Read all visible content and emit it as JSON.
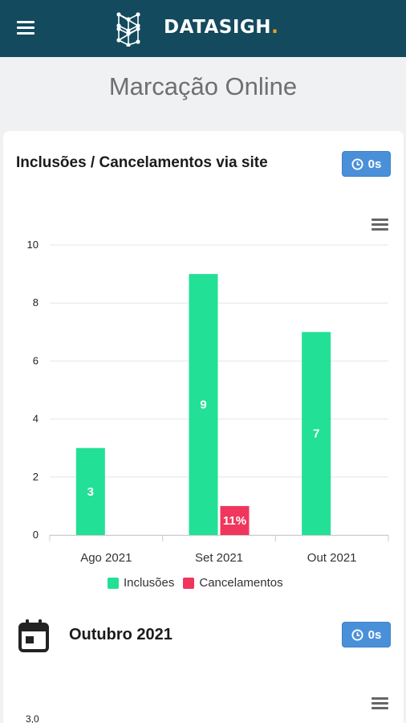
{
  "header": {
    "brand": "DATASIGH",
    "brand_suffix": ".",
    "menu_icon": "hamburger-icon",
    "logo_icon": "brain-network-icon",
    "bg_color": "#134a5e",
    "accent_color": "#f2a31a"
  },
  "page": {
    "title": "Marcação Online"
  },
  "card1": {
    "heading": "Inclusões / Cancelamentos via site",
    "timer_label": "0s",
    "timer_icon": "clock-icon",
    "menu_icon": "hamburger-icon"
  },
  "chart_data": {
    "type": "bar",
    "categories": [
      "Ago 2021",
      "Set 2021",
      "Out 2021"
    ],
    "yticks": [
      "0",
      "2",
      "4",
      "6",
      "8",
      "10"
    ],
    "ylim": [
      0,
      10
    ],
    "grid": true,
    "legend_position": "bottom",
    "series": [
      {
        "name": "Inclusões",
        "color": "#22e096",
        "values": [
          3,
          9,
          7
        ],
        "labels": [
          "3",
          "9",
          "7"
        ]
      },
      {
        "name": "Cancelamentos",
        "color": "#f0365c",
        "values": [
          0,
          1,
          0
        ],
        "labels": [
          "",
          "11%",
          ""
        ]
      }
    ]
  },
  "card2": {
    "heading": "Outubro 2021",
    "timer_label": "0s",
    "calendar_icon": "calendar-icon",
    "menu_icon": "hamburger-icon",
    "ytick_top": "3,0"
  }
}
